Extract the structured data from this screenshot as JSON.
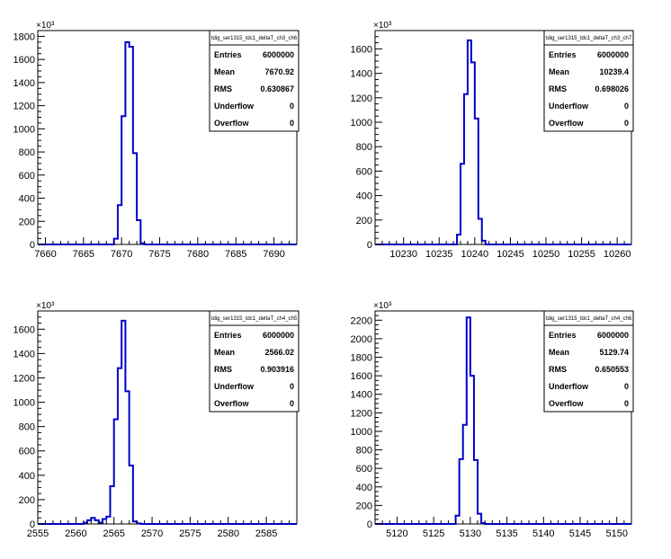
{
  "chart_data": [
    {
      "type": "histogram",
      "name": "tdig_ser1315_tdc1_deltaT_ch3_ch6",
      "xlim": [
        7659,
        7693
      ],
      "ylim": [
        0,
        1850
      ],
      "y_multiplier_label": "×10³",
      "x_ticks": [
        7660,
        7665,
        7670,
        7675,
        7680,
        7685,
        7690
      ],
      "y_ticks": [
        0,
        200,
        400,
        600,
        800,
        1000,
        1200,
        1400,
        1600,
        1800
      ],
      "y_tick_labels": [
        "0",
        "200",
        "400",
        "600",
        "800",
        "1000",
        "1200",
        "1400",
        "1600",
        "1800"
      ],
      "bins": {
        "edges": [
          7669.0,
          7669.5,
          7670.0,
          7670.5,
          7671.0,
          7671.5,
          7672.0,
          7672.5
        ],
        "counts": [
          50,
          340,
          1110,
          1750,
          1710,
          790,
          210,
          10
        ]
      },
      "stats": [
        {
          "label": "Entries",
          "value": "6000000"
        },
        {
          "label": "Mean",
          "value": "7670.92"
        },
        {
          "label": "RMS",
          "value": "0.630867"
        },
        {
          "label": "Underflow",
          "value": "0"
        },
        {
          "label": "Overflow",
          "value": "0"
        }
      ]
    },
    {
      "type": "histogram",
      "name": "tdig_ser1315_tdc1_deltaT_ch3_ch7",
      "xlim": [
        10226,
        10262
      ],
      "ylim": [
        0,
        1750
      ],
      "y_multiplier_label": "×10³",
      "x_ticks": [
        10230,
        10235,
        10240,
        10245,
        10250,
        10255,
        10260
      ],
      "y_ticks": [
        0,
        200,
        400,
        600,
        800,
        1000,
        1200,
        1400,
        1600
      ],
      "y_tick_labels": [
        "0",
        "200",
        "400",
        "600",
        "800",
        "1000",
        "1200",
        "1400",
        "1600"
      ],
      "bins": {
        "edges": [
          10237.5,
          10238.0,
          10238.5,
          10239.0,
          10239.5,
          10240.0,
          10240.5,
          10241.0
        ],
        "counts": [
          80,
          660,
          1230,
          1670,
          1490,
          1030,
          210,
          30
        ]
      },
      "stats": [
        {
          "label": "Entries",
          "value": "6000000"
        },
        {
          "label": "Mean",
          "value": "10239.4"
        },
        {
          "label": "RMS",
          "value": "0.698026"
        },
        {
          "label": "Underflow",
          "value": "0"
        },
        {
          "label": "Overflow",
          "value": "0"
        }
      ]
    },
    {
      "type": "histogram",
      "name": "tdig_ser1315_tdc1_deltaT_ch4_ch5",
      "xlim": [
        2555,
        2589
      ],
      "ylim": [
        0,
        1750
      ],
      "y_multiplier_label": "×10³",
      "x_ticks": [
        2555,
        2560,
        2565,
        2570,
        2575,
        2580,
        2585
      ],
      "y_ticks": [
        0,
        200,
        400,
        600,
        800,
        1000,
        1200,
        1400,
        1600
      ],
      "y_tick_labels": [
        "0",
        "200",
        "400",
        "600",
        "800",
        "1000",
        "1200",
        "1400",
        "1600"
      ],
      "bins": {
        "edges": [
          2561.0,
          2561.5,
          2562.0,
          2562.5,
          2563.0,
          2563.5,
          2564.0,
          2564.5,
          2565.0,
          2565.5,
          2566.0,
          2566.5,
          2567.0,
          2567.5,
          2568.0
        ],
        "counts": [
          10,
          30,
          50,
          30,
          10,
          40,
          60,
          310,
          860,
          1280,
          1670,
          1090,
          480,
          20,
          5
        ]
      },
      "stats": [
        {
          "label": "Entries",
          "value": "6000000"
        },
        {
          "label": "Mean",
          "value": "2566.02"
        },
        {
          "label": "RMS",
          "value": "0.903916"
        },
        {
          "label": "Underflow",
          "value": "0"
        },
        {
          "label": "Overflow",
          "value": "0"
        }
      ]
    },
    {
      "type": "histogram",
      "name": "tdig_ser1315_tdc1_deltaT_ch4_ch6",
      "xlim": [
        5117,
        5152
      ],
      "ylim": [
        0,
        2300
      ],
      "y_multiplier_label": "×10³",
      "x_ticks": [
        5120,
        5125,
        5130,
        5135,
        5140,
        5145,
        5150
      ],
      "y_ticks": [
        0,
        200,
        400,
        600,
        800,
        1000,
        1200,
        1400,
        1600,
        1800,
        2000,
        2200
      ],
      "y_tick_labels": [
        "0",
        "200",
        "400",
        "600",
        "800",
        "1000",
        "1200",
        "1400",
        "1600",
        "1800",
        "2000",
        "2200"
      ],
      "bins": {
        "edges": [
          5128.0,
          5128.5,
          5129.0,
          5129.5,
          5130.0,
          5130.5,
          5131.0,
          5131.5
        ],
        "counts": [
          90,
          700,
          1070,
          2230,
          1600,
          690,
          110,
          10
        ]
      },
      "stats": [
        {
          "label": "Entries",
          "value": "6000000"
        },
        {
          "label": "Mean",
          "value": "5129.74"
        },
        {
          "label": "RMS",
          "value": "0.650553"
        },
        {
          "label": "Underflow",
          "value": "0"
        },
        {
          "label": "Overflow",
          "value": "0"
        }
      ]
    }
  ],
  "colors": {
    "histogram_line": "#0000cc",
    "axis": "#000000",
    "background": "#ffffff"
  }
}
